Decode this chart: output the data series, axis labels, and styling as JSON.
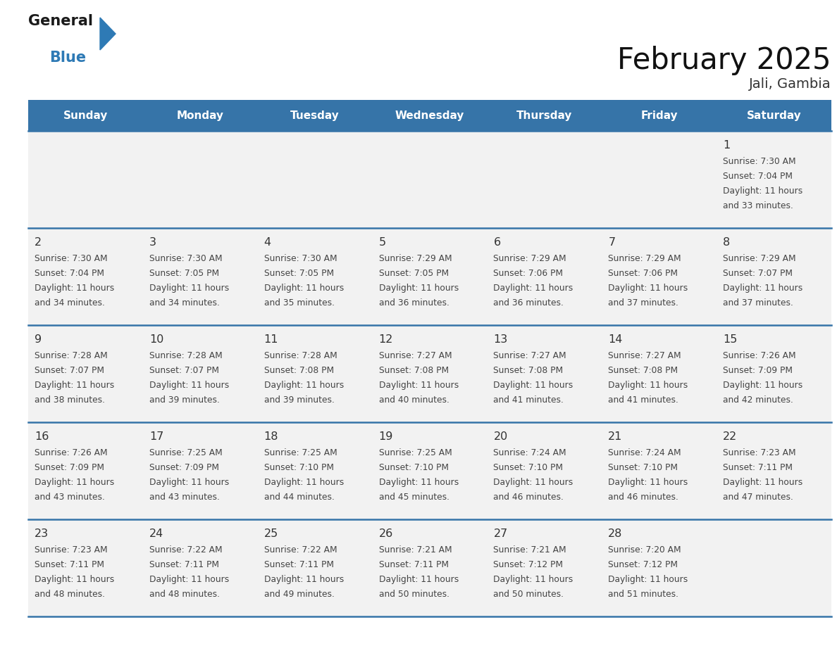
{
  "title": "February 2025",
  "subtitle": "Jali, Gambia",
  "header_bg": "#3674a8",
  "header_text": "#ffffff",
  "cell_bg": "#f2f2f2",
  "day_number_color": "#333333",
  "info_text_color": "#444444",
  "border_color": "#3674a8",
  "days_of_week": [
    "Sunday",
    "Monday",
    "Tuesday",
    "Wednesday",
    "Thursday",
    "Friday",
    "Saturday"
  ],
  "calendar_data": [
    [
      null,
      null,
      null,
      null,
      null,
      null,
      {
        "day": "1",
        "sunrise": "7:30 AM",
        "sunset": "7:04 PM",
        "daylight_line1": "Daylight: 11 hours",
        "daylight_line2": "and 33 minutes."
      }
    ],
    [
      {
        "day": "2",
        "sunrise": "7:30 AM",
        "sunset": "7:04 PM",
        "daylight_line1": "Daylight: 11 hours",
        "daylight_line2": "and 34 minutes."
      },
      {
        "day": "3",
        "sunrise": "7:30 AM",
        "sunset": "7:05 PM",
        "daylight_line1": "Daylight: 11 hours",
        "daylight_line2": "and 34 minutes."
      },
      {
        "day": "4",
        "sunrise": "7:30 AM",
        "sunset": "7:05 PM",
        "daylight_line1": "Daylight: 11 hours",
        "daylight_line2": "and 35 minutes."
      },
      {
        "day": "5",
        "sunrise": "7:29 AM",
        "sunset": "7:05 PM",
        "daylight_line1": "Daylight: 11 hours",
        "daylight_line2": "and 36 minutes."
      },
      {
        "day": "6",
        "sunrise": "7:29 AM",
        "sunset": "7:06 PM",
        "daylight_line1": "Daylight: 11 hours",
        "daylight_line2": "and 36 minutes."
      },
      {
        "day": "7",
        "sunrise": "7:29 AM",
        "sunset": "7:06 PM",
        "daylight_line1": "Daylight: 11 hours",
        "daylight_line2": "and 37 minutes."
      },
      {
        "day": "8",
        "sunrise": "7:29 AM",
        "sunset": "7:07 PM",
        "daylight_line1": "Daylight: 11 hours",
        "daylight_line2": "and 37 minutes."
      }
    ],
    [
      {
        "day": "9",
        "sunrise": "7:28 AM",
        "sunset": "7:07 PM",
        "daylight_line1": "Daylight: 11 hours",
        "daylight_line2": "and 38 minutes."
      },
      {
        "day": "10",
        "sunrise": "7:28 AM",
        "sunset": "7:07 PM",
        "daylight_line1": "Daylight: 11 hours",
        "daylight_line2": "and 39 minutes."
      },
      {
        "day": "11",
        "sunrise": "7:28 AM",
        "sunset": "7:08 PM",
        "daylight_line1": "Daylight: 11 hours",
        "daylight_line2": "and 39 minutes."
      },
      {
        "day": "12",
        "sunrise": "7:27 AM",
        "sunset": "7:08 PM",
        "daylight_line1": "Daylight: 11 hours",
        "daylight_line2": "and 40 minutes."
      },
      {
        "day": "13",
        "sunrise": "7:27 AM",
        "sunset": "7:08 PM",
        "daylight_line1": "Daylight: 11 hours",
        "daylight_line2": "and 41 minutes."
      },
      {
        "day": "14",
        "sunrise": "7:27 AM",
        "sunset": "7:08 PM",
        "daylight_line1": "Daylight: 11 hours",
        "daylight_line2": "and 41 minutes."
      },
      {
        "day": "15",
        "sunrise": "7:26 AM",
        "sunset": "7:09 PM",
        "daylight_line1": "Daylight: 11 hours",
        "daylight_line2": "and 42 minutes."
      }
    ],
    [
      {
        "day": "16",
        "sunrise": "7:26 AM",
        "sunset": "7:09 PM",
        "daylight_line1": "Daylight: 11 hours",
        "daylight_line2": "and 43 minutes."
      },
      {
        "day": "17",
        "sunrise": "7:25 AM",
        "sunset": "7:09 PM",
        "daylight_line1": "Daylight: 11 hours",
        "daylight_line2": "and 43 minutes."
      },
      {
        "day": "18",
        "sunrise": "7:25 AM",
        "sunset": "7:10 PM",
        "daylight_line1": "Daylight: 11 hours",
        "daylight_line2": "and 44 minutes."
      },
      {
        "day": "19",
        "sunrise": "7:25 AM",
        "sunset": "7:10 PM",
        "daylight_line1": "Daylight: 11 hours",
        "daylight_line2": "and 45 minutes."
      },
      {
        "day": "20",
        "sunrise": "7:24 AM",
        "sunset": "7:10 PM",
        "daylight_line1": "Daylight: 11 hours",
        "daylight_line2": "and 46 minutes."
      },
      {
        "day": "21",
        "sunrise": "7:24 AM",
        "sunset": "7:10 PM",
        "daylight_line1": "Daylight: 11 hours",
        "daylight_line2": "and 46 minutes."
      },
      {
        "day": "22",
        "sunrise": "7:23 AM",
        "sunset": "7:11 PM",
        "daylight_line1": "Daylight: 11 hours",
        "daylight_line2": "and 47 minutes."
      }
    ],
    [
      {
        "day": "23",
        "sunrise": "7:23 AM",
        "sunset": "7:11 PM",
        "daylight_line1": "Daylight: 11 hours",
        "daylight_line2": "and 48 minutes."
      },
      {
        "day": "24",
        "sunrise": "7:22 AM",
        "sunset": "7:11 PM",
        "daylight_line1": "Daylight: 11 hours",
        "daylight_line2": "and 48 minutes."
      },
      {
        "day": "25",
        "sunrise": "7:22 AM",
        "sunset": "7:11 PM",
        "daylight_line1": "Daylight: 11 hours",
        "daylight_line2": "and 49 minutes."
      },
      {
        "day": "26",
        "sunrise": "7:21 AM",
        "sunset": "7:11 PM",
        "daylight_line1": "Daylight: 11 hours",
        "daylight_line2": "and 50 minutes."
      },
      {
        "day": "27",
        "sunrise": "7:21 AM",
        "sunset": "7:12 PM",
        "daylight_line1": "Daylight: 11 hours",
        "daylight_line2": "and 50 minutes."
      },
      {
        "day": "28",
        "sunrise": "7:20 AM",
        "sunset": "7:12 PM",
        "daylight_line1": "Daylight: 11 hours",
        "daylight_line2": "and 51 minutes."
      },
      null
    ]
  ],
  "logo_general_color": "#1a1a1a",
  "logo_blue_color": "#2e7ab5",
  "logo_triangle_color": "#2e7ab5",
  "figwidth": 11.88,
  "figheight": 9.18,
  "dpi": 100
}
